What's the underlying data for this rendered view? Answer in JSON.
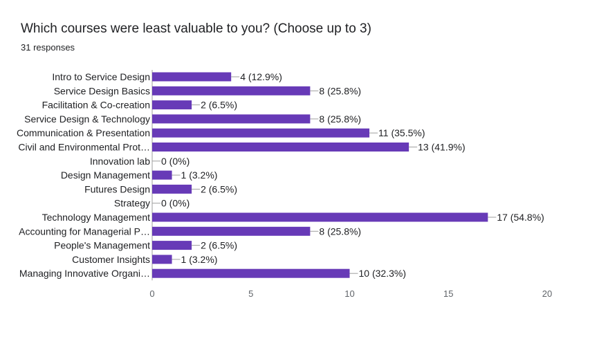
{
  "header": {
    "title": "Which courses were least valuable to you? (Choose up to 3)",
    "responses": "31 responses"
  },
  "colors": {
    "bar": "#673ab7",
    "axis": "#9e9e9e",
    "leader": "#9e9e9e"
  },
  "chart_data": {
    "type": "bar",
    "orientation": "horizontal",
    "title": "Which courses were least valuable to you? (Choose up to 3)",
    "categories": [
      "Intro to Service Design",
      "Service Design Basics",
      "Facilitation & Co-creation",
      "Service Design & Technology",
      "Communication & Presentation",
      "Civil and Environmental Prot…",
      "Innovation lab",
      "Design Management",
      "Futures Design",
      "Strategy",
      "Technology Management",
      "Accounting for Managerial P…",
      "People's Management",
      "Customer Insights",
      "Managing Innovative Organi…"
    ],
    "values": [
      4,
      8,
      2,
      8,
      11,
      13,
      0,
      1,
      2,
      0,
      17,
      8,
      2,
      1,
      10
    ],
    "value_labels": [
      "4 (12.9%)",
      "8 (25.8%)",
      "2 (6.5%)",
      "8 (25.8%)",
      "11 (35.5%)",
      "13 (41.9%)",
      "0 (0%)",
      "1 (3.2%)",
      "2 (6.5%)",
      "0 (0%)",
      "17 (54.8%)",
      "8 (25.8%)",
      "2 (6.5%)",
      "1 (3.2%)",
      "10 (32.3%)"
    ],
    "xlim": [
      0,
      20
    ],
    "xticks": [
      0,
      5,
      10,
      15,
      20
    ],
    "grid": false,
    "legend": "none"
  }
}
